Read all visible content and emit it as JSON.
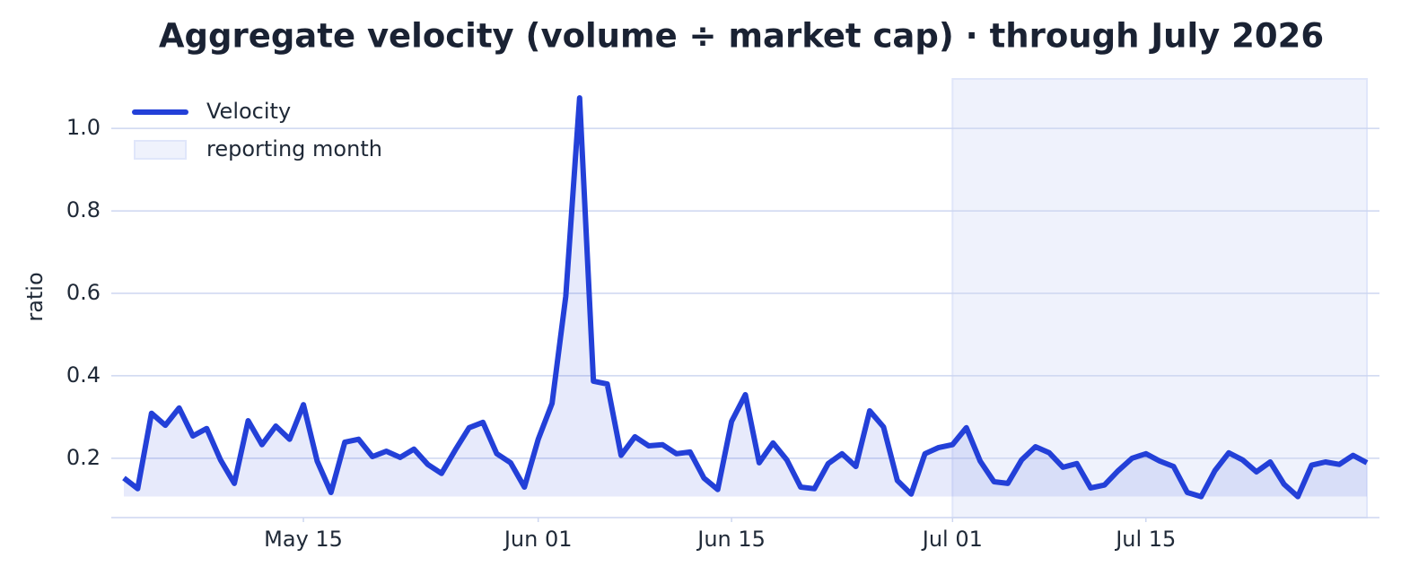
{
  "chart_data": {
    "type": "line",
    "title": "Aggregate velocity (volume ÷ market cap) · through July 2026",
    "y_label": "ratio",
    "x": [
      "2026-05-02",
      "2026-05-03",
      "2026-05-04",
      "2026-05-05",
      "2026-05-06",
      "2026-05-07",
      "2026-05-08",
      "2026-05-09",
      "2026-05-10",
      "2026-05-11",
      "2026-05-12",
      "2026-05-13",
      "2026-05-14",
      "2026-05-15",
      "2026-05-16",
      "2026-05-17",
      "2026-05-18",
      "2026-05-19",
      "2026-05-20",
      "2026-05-21",
      "2026-05-22",
      "2026-05-23",
      "2026-05-24",
      "2026-05-25",
      "2026-05-26",
      "2026-05-27",
      "2026-05-28",
      "2026-05-29",
      "2026-05-30",
      "2026-05-31",
      "2026-06-01",
      "2026-06-02",
      "2026-06-03",
      "2026-06-04",
      "2026-06-05",
      "2026-06-06",
      "2026-06-07",
      "2026-06-08",
      "2026-06-09",
      "2026-06-10",
      "2026-06-11",
      "2026-06-12",
      "2026-06-13",
      "2026-06-14",
      "2026-06-15",
      "2026-06-16",
      "2026-06-17",
      "2026-06-18",
      "2026-06-19",
      "2026-06-20",
      "2026-06-21",
      "2026-06-22",
      "2026-06-23",
      "2026-06-24",
      "2026-06-25",
      "2026-06-26",
      "2026-06-27",
      "2026-06-28",
      "2026-06-29",
      "2026-06-30",
      "2026-07-01",
      "2026-07-02",
      "2026-07-03",
      "2026-07-04",
      "2026-07-05",
      "2026-07-06",
      "2026-07-07",
      "2026-07-08",
      "2026-07-09",
      "2026-07-10",
      "2026-07-11",
      "2026-07-12",
      "2026-07-13",
      "2026-07-14",
      "2026-07-15",
      "2026-07-16",
      "2026-07-17",
      "2026-07-18",
      "2026-07-19",
      "2026-07-20",
      "2026-07-21",
      "2026-07-22",
      "2026-07-23",
      "2026-07-24",
      "2026-07-25",
      "2026-07-26",
      "2026-07-27",
      "2026-07-28",
      "2026-07-29",
      "2026-07-30",
      "2026-07-31"
    ],
    "series": [
      {
        "name": "Velocity",
        "color": "#2340d8",
        "values": [
          0.152,
          0.126,
          0.309,
          0.28,
          0.322,
          0.254,
          0.272,
          0.196,
          0.139,
          0.291,
          0.233,
          0.278,
          0.246,
          0.33,
          0.193,
          0.117,
          0.239,
          0.246,
          0.204,
          0.217,
          0.202,
          0.222,
          0.185,
          0.163,
          0.22,
          0.274,
          0.287,
          0.211,
          0.189,
          0.13,
          0.246,
          0.333,
          0.593,
          1.074,
          0.387,
          0.38,
          0.207,
          0.252,
          0.23,
          0.233,
          0.211,
          0.215,
          0.152,
          0.124,
          0.289,
          0.354,
          0.189,
          0.237,
          0.196,
          0.13,
          0.126,
          0.187,
          0.211,
          0.18,
          0.315,
          0.276,
          0.146,
          0.113,
          0.211,
          0.226,
          0.233,
          0.274,
          0.193,
          0.143,
          0.139,
          0.196,
          0.228,
          0.213,
          0.178,
          0.187,
          0.128,
          0.135,
          0.17,
          0.2,
          0.211,
          0.193,
          0.18,
          0.117,
          0.107,
          0.17,
          0.213,
          0.196,
          0.167,
          0.191,
          0.137,
          0.107,
          0.183,
          0.191,
          0.185,
          0.207,
          0.189
        ]
      }
    ],
    "highlight": {
      "label": "reporting month",
      "start": "2026-07-01",
      "end": "2026-07-31",
      "color": "#e0e6fa"
    },
    "xlim": [
      "2026-05-02",
      "2026-07-31"
    ],
    "xticks": [
      {
        "value": "2026-05-15",
        "label": "May 15"
      },
      {
        "value": "2026-06-01",
        "label": "Jun 01"
      },
      {
        "value": "2026-06-15",
        "label": "Jun 15"
      },
      {
        "value": "2026-07-01",
        "label": "Jul 01"
      },
      {
        "value": "2026-07-15",
        "label": "Jul 15"
      }
    ],
    "ylim": [
      0.056,
      1.12
    ],
    "yticks": [
      0.2,
      0.4,
      0.6,
      0.8,
      {
        "value": 1,
        "label": "1.0"
      }
    ],
    "grid": true,
    "legend": "upper-left"
  }
}
